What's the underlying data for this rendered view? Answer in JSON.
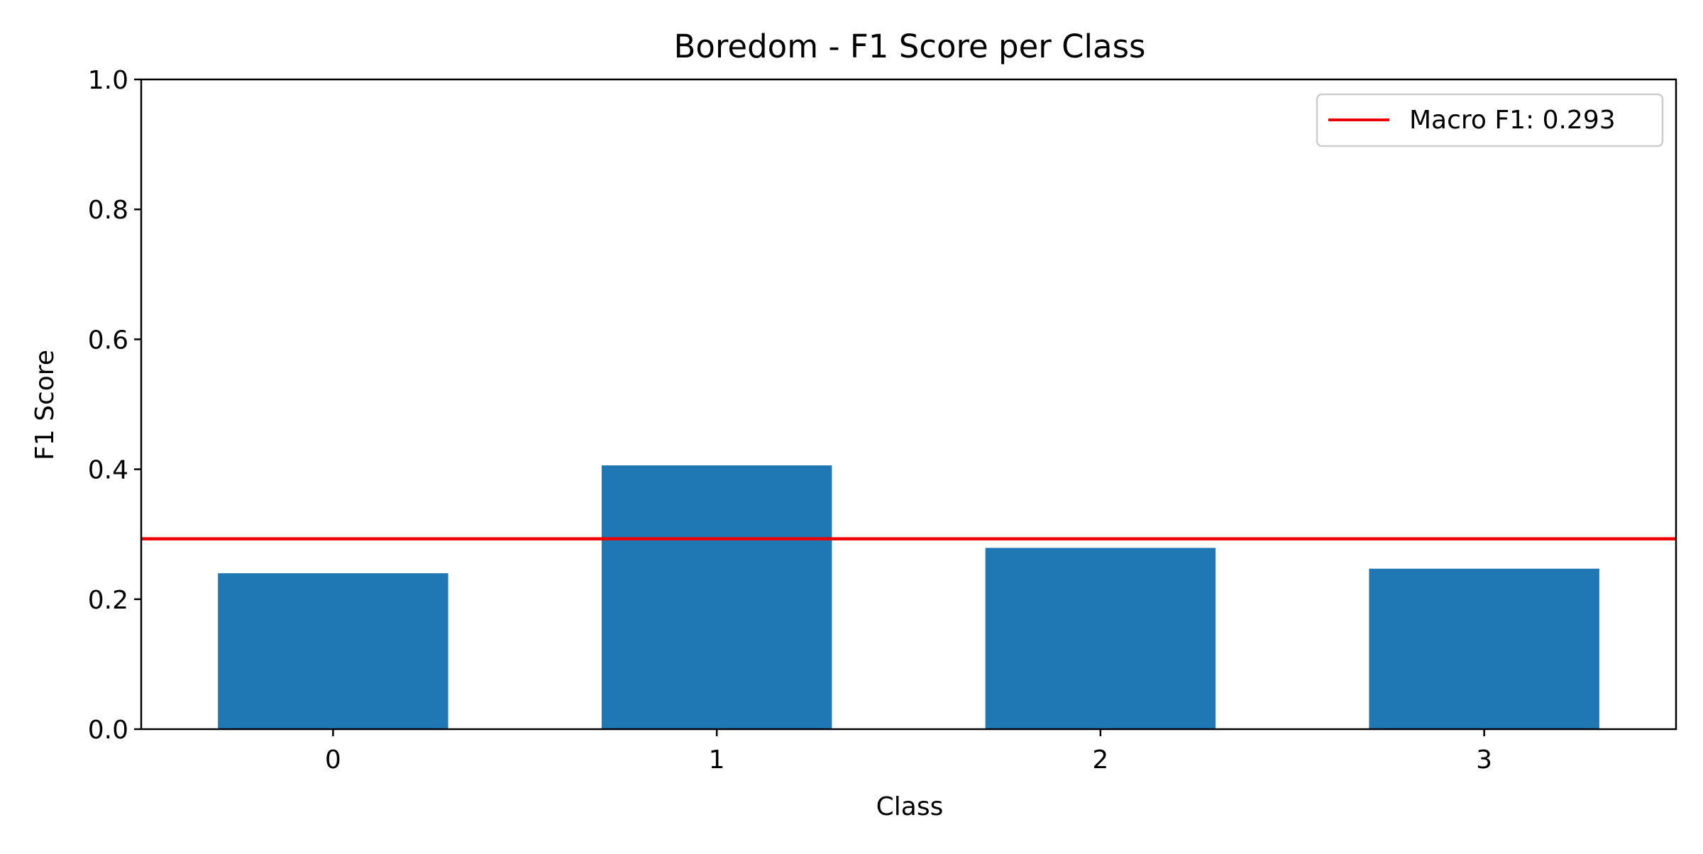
{
  "chart_data": {
    "type": "bar",
    "title": "Boredom - F1 Score per Class",
    "xlabel": "Class",
    "ylabel": "F1 Score",
    "categories": [
      "0",
      "1",
      "2",
      "3"
    ],
    "values": [
      0.24,
      0.406,
      0.279,
      0.247
    ],
    "ylim": [
      0.0,
      1.0
    ],
    "yticks": [
      0.0,
      0.2,
      0.4,
      0.6,
      0.8,
      1.0
    ],
    "ytick_labels": [
      "0.0",
      "0.2",
      "0.4",
      "0.6",
      "0.8",
      "1.0"
    ],
    "bar_color": "#1f77b4",
    "reference_line": {
      "value": 0.293,
      "label": "Macro F1: 0.293",
      "color": "#ee0000"
    },
    "legend_position": "top-right",
    "grid": false
  }
}
